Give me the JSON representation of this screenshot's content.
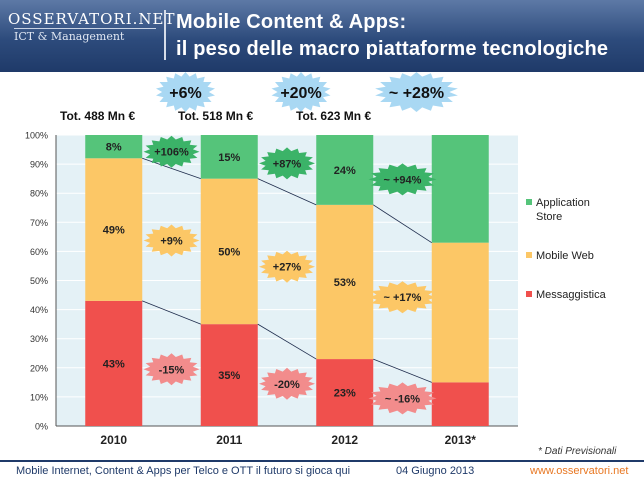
{
  "header": {
    "logo_main": "OSSERVATORI.NET",
    "logo_sub": "ICT & Management",
    "title_line1": "Mobile Content & Apps:",
    "title_line2": "il peso delle macro piattaforme tecnologiche"
  },
  "totals": [
    "Tot. 488 Mn €",
    "Tot. 518 Mn €",
    "Tot. 623 Mn €"
  ],
  "growth_badges": [
    "+6%",
    "+20%",
    "~ +28%"
  ],
  "chart_data": {
    "type": "bar",
    "stacked": true,
    "percent": true,
    "categories": [
      "2010",
      "2011",
      "2012",
      "2013*"
    ],
    "series": [
      {
        "name": "Messaggistica",
        "color": "#f0504d",
        "values": [
          43,
          35,
          23,
          15
        ],
        "labels": [
          "43%",
          "35%",
          "23%",
          ""
        ]
      },
      {
        "name": "Mobile Web",
        "color": "#fcc766",
        "values": [
          49,
          50,
          53,
          48
        ],
        "labels": [
          "49%",
          "50%",
          "53%",
          ""
        ]
      },
      {
        "name": "Application Store",
        "color": "#55c47a",
        "values": [
          8,
          15,
          24,
          37
        ],
        "labels": [
          "8%",
          "15%",
          "24%",
          ""
        ]
      }
    ],
    "ylim": [
      0,
      100
    ],
    "yticks": [
      "0%",
      "10%",
      "20%",
      "30%",
      "40%",
      "50%",
      "60%",
      "70%",
      "80%",
      "90%",
      "100%"
    ],
    "legend": [
      {
        "line1": "Application",
        "line2": "Store",
        "color": "#55c47a"
      },
      {
        "line1": "Mobile Web",
        "line2": "",
        "color": "#fcc766"
      },
      {
        "line1": "Messaggistica",
        "line2": "",
        "color": "#f0504d"
      }
    ],
    "legend_position": "right",
    "growth_annotations": [
      {
        "text": "+106%",
        "series": "Application Store",
        "between": 0,
        "color": "#3bb368"
      },
      {
        "text": "+87%",
        "series": "Application Store",
        "between": 1,
        "color": "#3bb368"
      },
      {
        "text": "~ +94%",
        "series": "Application Store",
        "between": 2,
        "color": "#3bb368"
      },
      {
        "text": "+9%",
        "series": "Mobile Web",
        "between": 0,
        "color": "#fcc766"
      },
      {
        "text": "+27%",
        "series": "Mobile Web",
        "between": 1,
        "color": "#fcc766"
      },
      {
        "text": "~ +17%",
        "series": "Mobile Web",
        "between": 2,
        "color": "#fcc766"
      },
      {
        "text": "-15%",
        "series": "Messaggistica",
        "between": 0,
        "color": "#f28c8c"
      },
      {
        "text": "-20%",
        "series": "Messaggistica",
        "between": 1,
        "color": "#f28c8c"
      },
      {
        "text": "~ -16%",
        "series": "Messaggistica",
        "between": 2,
        "color": "#f28c8c"
      }
    ],
    "note": "* Dati Previsionali"
  },
  "footer": {
    "left": "Mobile Internet, Content & Apps  per Telco e OTT il futuro si gioca qui",
    "date": "04 Giugno 2013",
    "url": "www.osservatori.net"
  }
}
